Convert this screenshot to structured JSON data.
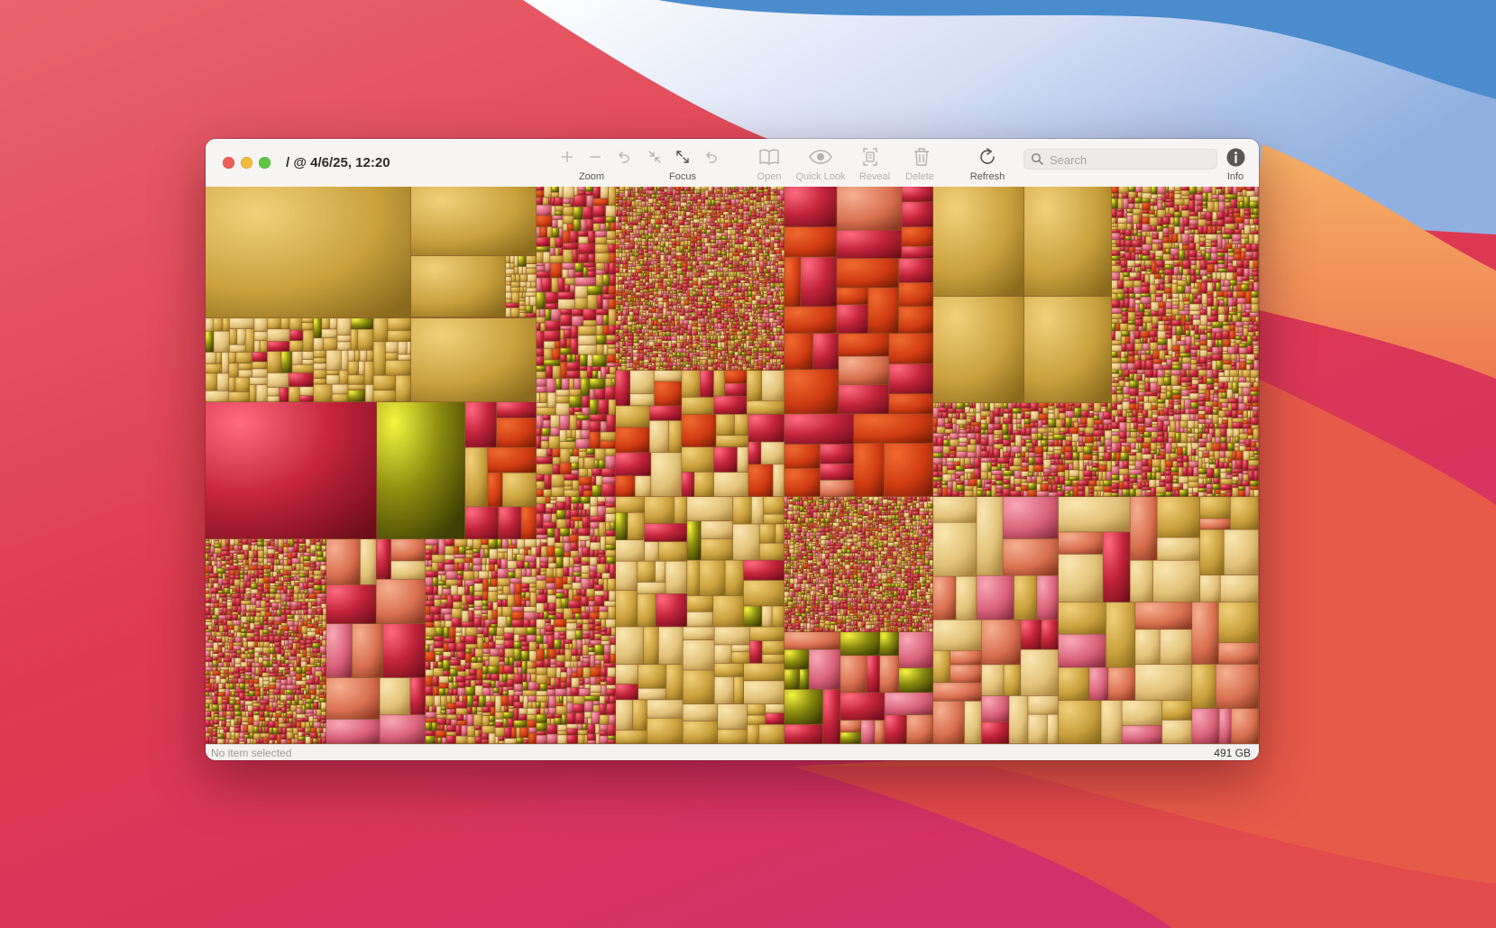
{
  "window": {
    "title": "/ @ 4/6/25, 12:20"
  },
  "toolbar": {
    "zoom_label": "Zoom",
    "focus_label": "Focus",
    "open_label": "Open",
    "quicklook_label": "Quick Look",
    "reveal_label": "Reveal",
    "delete_label": "Delete",
    "refresh_label": "Refresh",
    "info_label": "Info",
    "icons": {
      "zoom_in": "plus-icon",
      "zoom_out": "minus-icon",
      "zoom_back": "undo-arrow-icon",
      "focus_out": "collapse-arrows-icon",
      "focus_in": "expand-arrows-icon",
      "focus_back": "undo-arrow-icon",
      "open": "book-icon",
      "quicklook": "eye-icon",
      "reveal": "reveal-in-finder-icon",
      "delete": "trash-icon",
      "refresh": "refresh-icon",
      "info": "info-circle-icon"
    }
  },
  "search": {
    "placeholder": "Search"
  },
  "status": {
    "selection": "No item selected",
    "total_size": "491 GB"
  },
  "colors": {
    "gold": "#c9a03c",
    "red": "#c4243c",
    "orange": "#cf3a12",
    "olive": "#8f8f10",
    "tan": "#e2c27a",
    "pink": "#d9617a",
    "salmon": "#d97050",
    "close": "#ee5f57",
    "minimize": "#f3bb3e",
    "maximize": "#5fc643"
  }
}
